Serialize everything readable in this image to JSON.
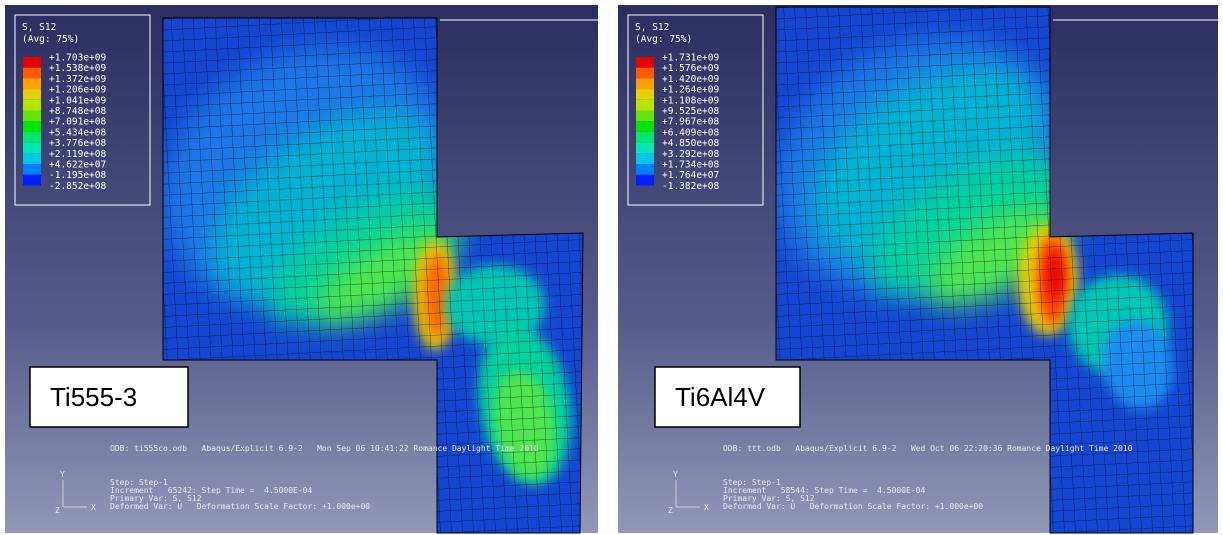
{
  "panels": [
    {
      "legend": {
        "title": "S, S12",
        "subtitle": "(Avg: 75%)",
        "labels": [
          "+1.703e+09",
          "+1.538e+09",
          "+1.372e+09",
          "+1.206e+09",
          "+1.041e+09",
          "+8.748e+08",
          "+7.091e+08",
          "+5.434e+08",
          "+3.776e+08",
          "+2.119e+08",
          "+4.622e+07",
          "-1.195e+08",
          "-2.852e+08"
        ]
      },
      "label": "Ti555-3",
      "info": {
        "odb": "ODB: ti555co.odb   Abaqus/Explicit 6.9-2   Mon Sep 06 10:41:22 Romance Daylight Time 2010",
        "step": "Step: Step-1",
        "increment": "Increment   65242: Step Time =  4.5000E-04",
        "primary": "Primary Var: S, S12",
        "deformed": "Deformed Var: U   Deformation Scale Factor: +1.000e+00"
      },
      "axes": {
        "y": "Y",
        "x": "X",
        "z": "Z"
      }
    },
    {
      "legend": {
        "title": "S, S12",
        "subtitle": "(Avg: 75%)",
        "labels": [
          "+1.731e+09",
          "+1.576e+09",
          "+1.420e+09",
          "+1.264e+09",
          "+1.108e+09",
          "+9.525e+08",
          "+7.967e+08",
          "+6.409e+08",
          "+4.850e+08",
          "+3.292e+08",
          "+1.734e+08",
          "+1.764e+07",
          "-1.382e+08"
        ]
      },
      "label": "Ti6Al4V",
      "info": {
        "odb": "ODB: ttt.odb   Abaqus/Explicit 6.9-2   Wed Oct 06 22:20:36 Romance Daylight Time 2010",
        "step": "Step: Step-1",
        "increment": "Increment   58544: Step Time =  4.5000E-04",
        "primary": "Primary Var: S, S12",
        "deformed": "Deformed Var: U   Deformation Scale Factor: +1.000e+00"
      },
      "axes": {
        "y": "Y",
        "x": "X",
        "z": "Z"
      }
    }
  ]
}
